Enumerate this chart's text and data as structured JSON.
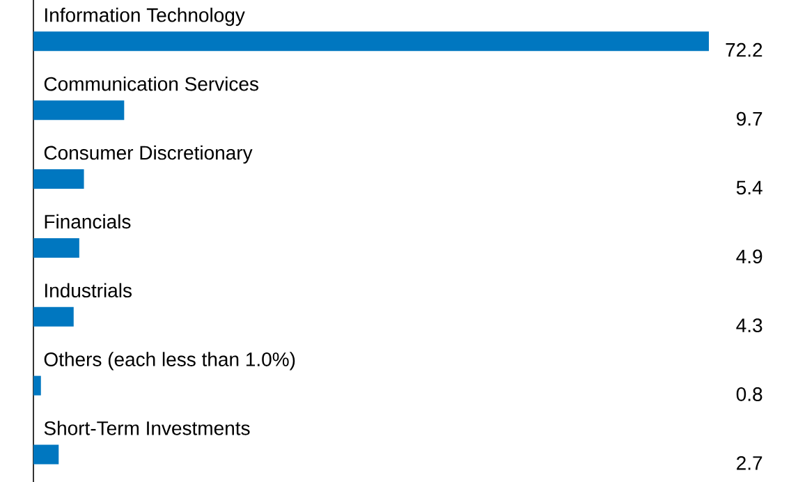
{
  "chart_data": {
    "type": "bar",
    "orientation": "horizontal",
    "data_labels": true,
    "color": "#0077c0",
    "categories": [
      "Information Technology",
      "Communication Services",
      "Consumer Discretionary",
      "Financials",
      "Industrials",
      "Others (each less than 1.0%)",
      "Short-Term Investments"
    ],
    "values": [
      72.2,
      9.7,
      5.4,
      4.9,
      4.3,
      0.8,
      2.7
    ]
  }
}
